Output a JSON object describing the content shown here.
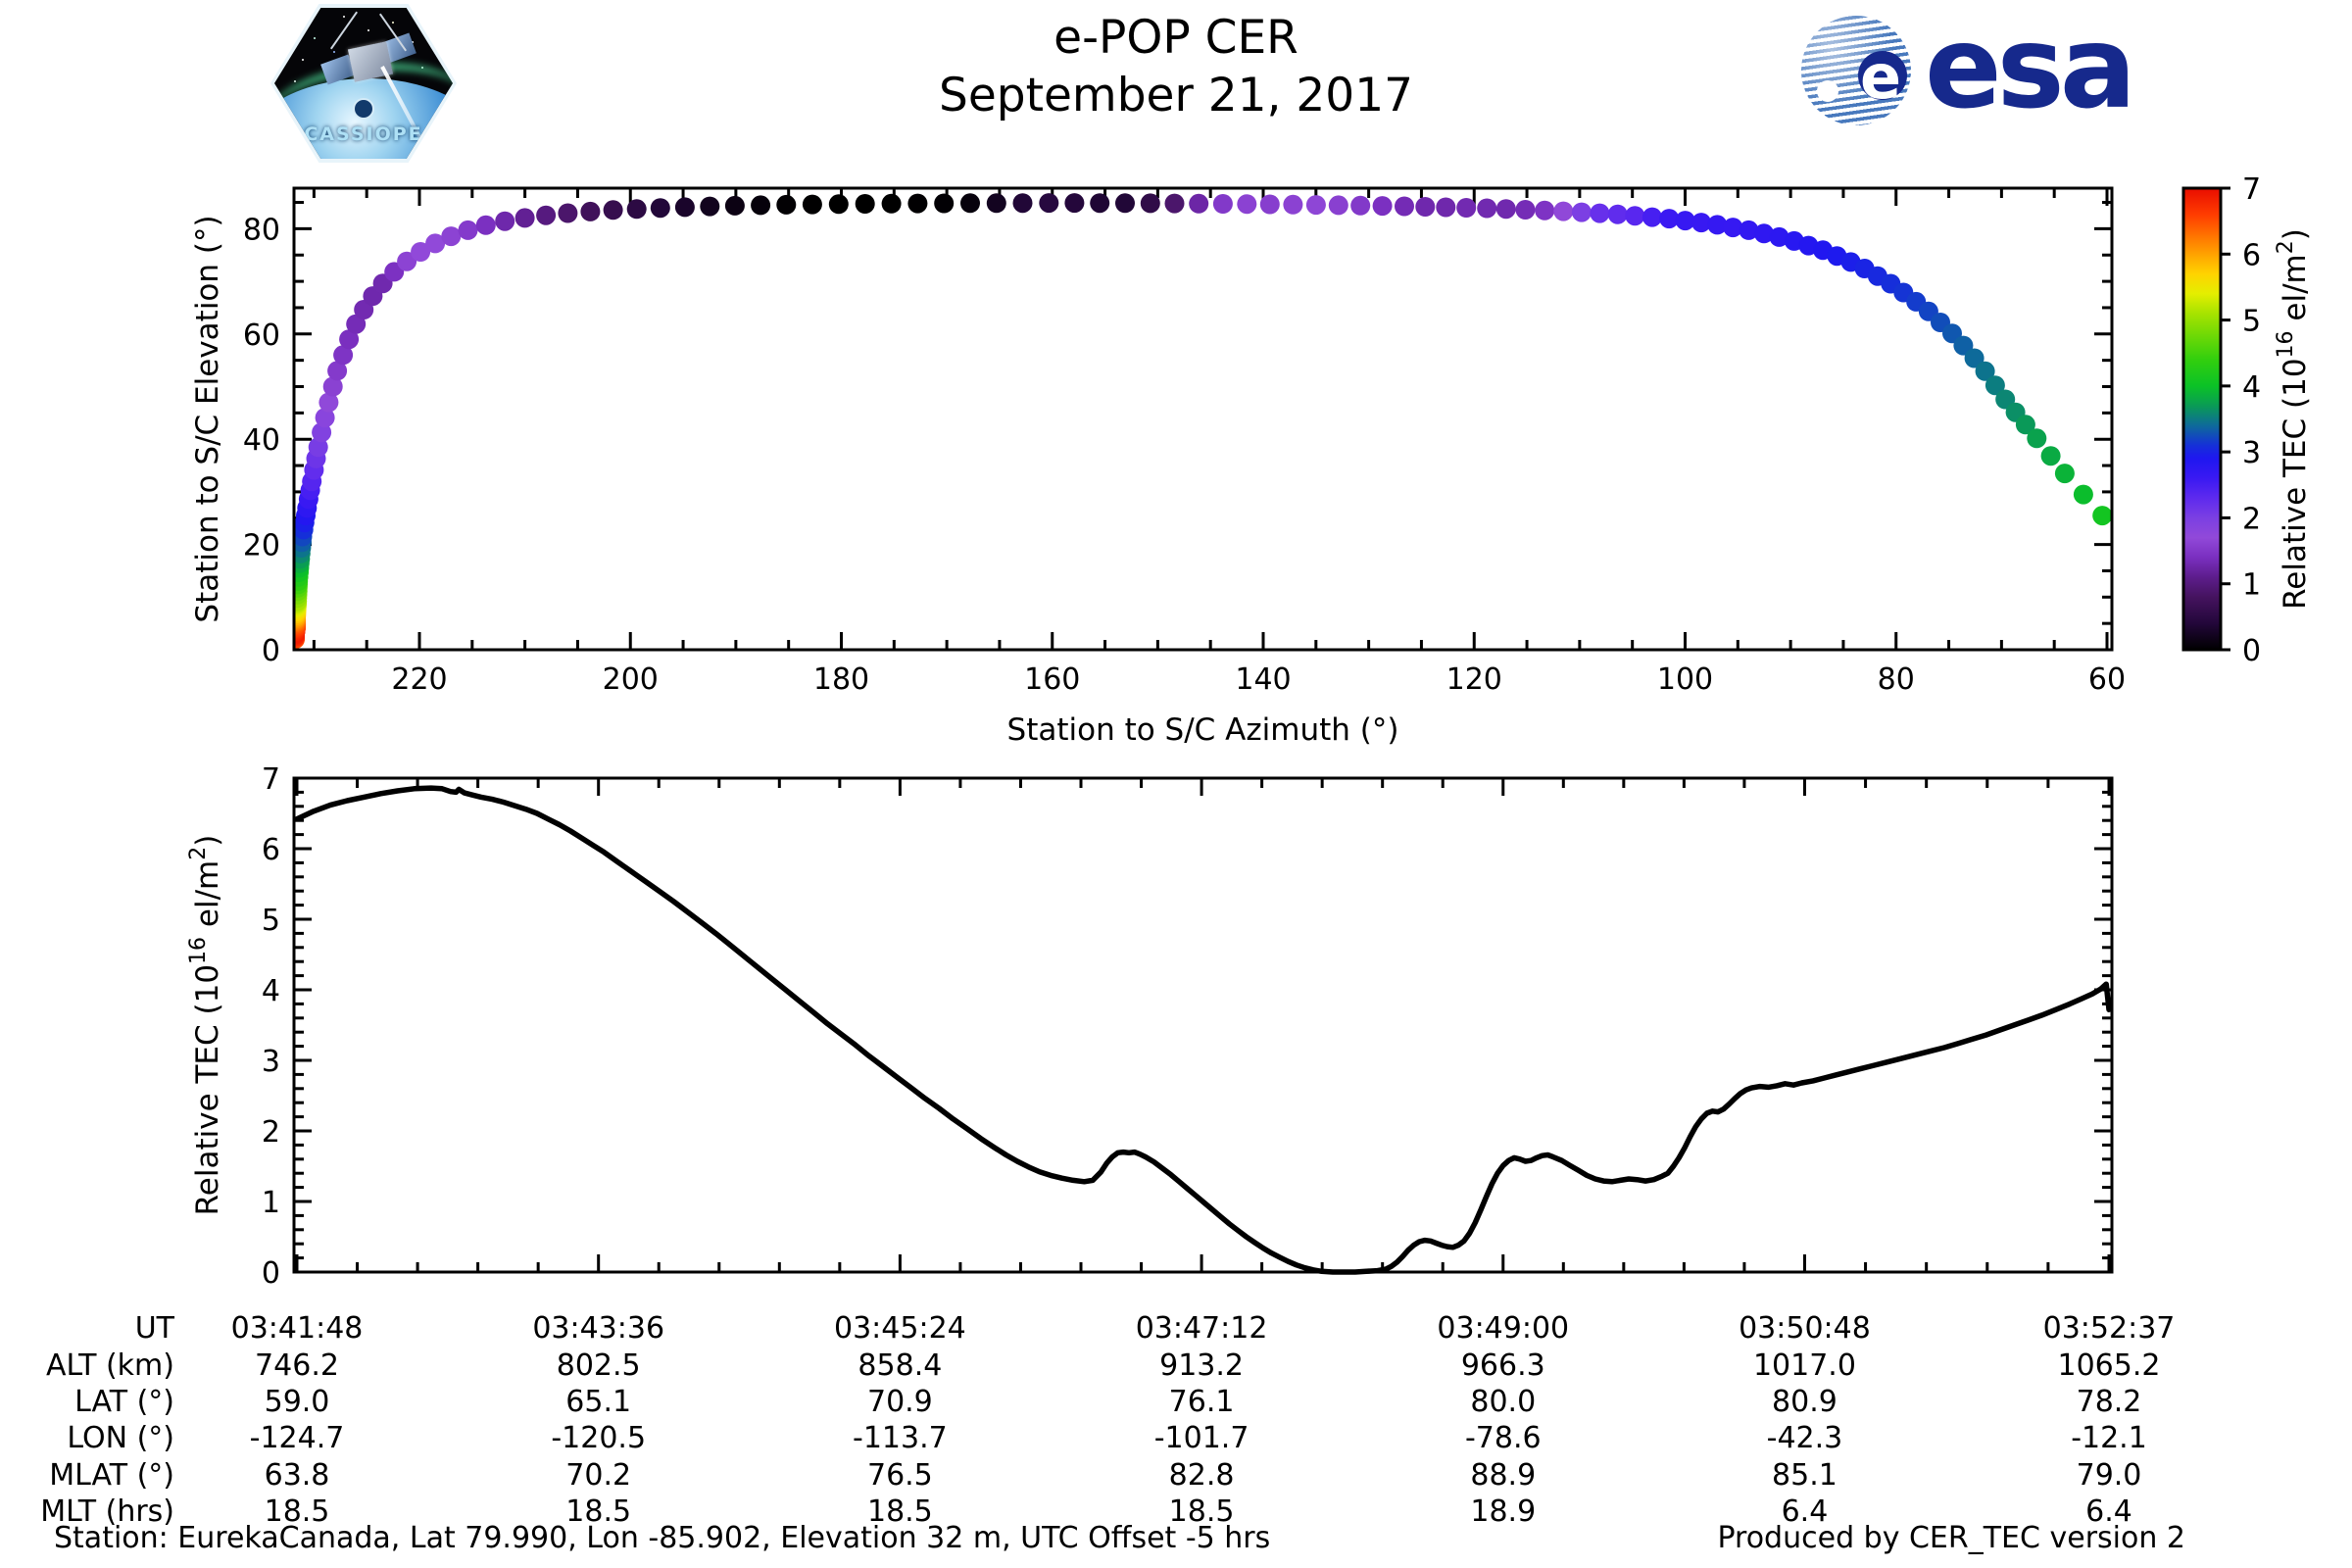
{
  "header": {
    "title": "e-POP CER",
    "date": "September 21, 2017",
    "mission_patch_label": "CASSIOPE",
    "esa_label": "esa"
  },
  "footer": {
    "station_info": "Station: EurekaCanada, Lat 79.990, Lon -85.902, Elevation 32 m, UTC Offset -5 hrs",
    "produced_by": "Produced by CER_TEC version 2"
  },
  "colors": {
    "esa_blue": "#16298c",
    "axis_black": "#000000",
    "background": "#ffffff"
  },
  "table": {
    "row_labels": [
      "UT",
      "ALT (km)",
      "LAT (°)",
      "LON (°)",
      "MLAT (°)",
      "MLT (hrs)"
    ],
    "columns": [
      {
        "ut": "03:41:48",
        "alt": "746.2",
        "lat": "59.0",
        "lon": "-124.7",
        "mlat": "63.8",
        "mlt": "18.5"
      },
      {
        "ut": "03:43:36",
        "alt": "802.5",
        "lat": "65.1",
        "lon": "-120.5",
        "mlat": "70.2",
        "mlt": "18.5"
      },
      {
        "ut": "03:45:24",
        "alt": "858.4",
        "lat": "70.9",
        "lon": "-113.7",
        "mlat": "76.5",
        "mlt": "18.5"
      },
      {
        "ut": "03:47:12",
        "alt": "913.2",
        "lat": "76.1",
        "lon": "-101.7",
        "mlat": "82.8",
        "mlt": "18.5"
      },
      {
        "ut": "03:49:00",
        "alt": "966.3",
        "lat": "80.0",
        "lon": "-78.6",
        "mlat": "88.9",
        "mlt": "18.9"
      },
      {
        "ut": "03:50:48",
        "alt": "1017.0",
        "lat": "80.9",
        "lon": "-42.3",
        "mlat": "85.1",
        "mlt": "6.4"
      },
      {
        "ut": "03:52:37",
        "alt": "1065.2",
        "lat": "78.2",
        "lon": "-12.1",
        "mlat": "79.0",
        "mlt": "6.4"
      }
    ]
  },
  "chart_data": [
    {
      "type": "scatter",
      "xlabel": "Station to S/C Azimuth (°)",
      "ylabel": "Station to S/C Elevation (°)",
      "x_reversed": true,
      "xlim": [
        231.9,
        59.5
      ],
      "ylim": [
        0,
        87.7
      ],
      "xticks": [
        220,
        200,
        180,
        160,
        140,
        120,
        100,
        80,
        60
      ],
      "yticks": [
        0,
        20,
        40,
        60,
        80
      ],
      "x_minor_step": 5,
      "y_minor_step": 5,
      "marker_radius": 10,
      "sample_dt": 4,
      "track_t_az_el": [
        [
          0,
          231.8,
          2.0
        ],
        [
          40,
          231.8,
          2.9
        ],
        [
          80,
          231.7,
          4.4
        ],
        [
          110,
          231.7,
          6.3
        ],
        [
          140,
          231.6,
          9.2
        ],
        [
          165,
          231.5,
          13.2
        ],
        [
          185,
          231.3,
          17.5
        ],
        [
          200,
          231.1,
          21.5
        ],
        [
          215,
          230.7,
          26.5
        ],
        [
          228,
          230.2,
          32.0
        ],
        [
          240,
          229.6,
          38.5
        ],
        [
          250,
          228.8,
          45.5
        ],
        [
          260,
          227.8,
          53.0
        ],
        [
          270,
          226.4,
          60.5
        ],
        [
          278,
          224.9,
          66.0
        ],
        [
          286,
          223.0,
          70.8
        ],
        [
          294,
          220.6,
          74.8
        ],
        [
          302,
          217.8,
          78.0
        ],
        [
          310,
          214.6,
          80.3
        ],
        [
          318,
          211.0,
          81.8
        ],
        [
          326,
          207.0,
          82.8
        ],
        [
          335,
          202.2,
          83.5
        ],
        [
          345,
          196.6,
          84.0
        ],
        [
          355,
          190.7,
          84.35
        ],
        [
          366,
          184.0,
          84.6
        ],
        [
          378,
          176.5,
          84.75
        ],
        [
          391,
          168.4,
          84.85
        ],
        [
          405,
          159.7,
          84.9
        ],
        [
          420,
          150.7,
          84.85
        ],
        [
          435,
          142.1,
          84.7
        ],
        [
          450,
          133.9,
          84.5
        ],
        [
          465,
          126.1,
          84.25
        ],
        [
          480,
          118.8,
          83.9
        ],
        [
          494,
          112.4,
          83.4
        ],
        [
          507,
          106.8,
          82.8
        ],
        [
          519,
          101.9,
          82.0
        ],
        [
          530,
          97.7,
          81.0
        ],
        [
          541,
          93.6,
          79.6
        ],
        [
          551,
          90.0,
          77.9
        ],
        [
          561,
          86.6,
          75.7
        ],
        [
          571,
          83.3,
          72.8
        ],
        [
          581,
          80.2,
          69.2
        ],
        [
          591,
          77.2,
          64.8
        ],
        [
          601,
          74.4,
          59.6
        ],
        [
          611,
          71.8,
          53.6
        ],
        [
          621,
          69.4,
          46.9
        ],
        [
          631,
          67.0,
          41.0
        ],
        [
          640,
          64.0,
          33.5
        ],
        [
          645,
          61.8,
          28.5
        ],
        [
          649,
          60.0,
          24.5
        ]
      ],
      "colorbar": {
        "lim": [
          0,
          7
        ],
        "ticks": [
          0,
          1,
          2,
          3,
          4,
          5,
          6,
          7
        ],
        "label_parts": [
          {
            "t": "Relative TEC (10"
          },
          {
            "t": "16",
            "sup": true
          },
          {
            "t": " el/m"
          },
          {
            "t": "2",
            "sup": true
          },
          {
            "t": ")"
          }
        ],
        "stops": [
          [
            0.0,
            "#000000"
          ],
          [
            0.4,
            "#23073a"
          ],
          [
            0.8,
            "#45135f"
          ],
          [
            1.1,
            "#5d1d8c"
          ],
          [
            1.4,
            "#7a2fc0"
          ],
          [
            1.7,
            "#9149d9"
          ],
          [
            2.0,
            "#7b3fe3"
          ],
          [
            2.3,
            "#5e2aee"
          ],
          [
            2.6,
            "#3a19f2"
          ],
          [
            2.9,
            "#1f17f0"
          ],
          [
            3.1,
            "#1530d8"
          ],
          [
            3.4,
            "#0e6a9a"
          ],
          [
            3.7,
            "#0a9b55"
          ],
          [
            4.0,
            "#0bc226"
          ],
          [
            4.4,
            "#32cf0e"
          ],
          [
            4.8,
            "#74da05"
          ],
          [
            5.1,
            "#a7e300"
          ],
          [
            5.4,
            "#e4ee00"
          ],
          [
            5.7,
            "#ffd300"
          ],
          [
            6.0,
            "#ffa200"
          ],
          [
            6.3,
            "#ff7000"
          ],
          [
            6.6,
            "#ff3c00"
          ],
          [
            7.0,
            "#e90d00"
          ]
        ]
      }
    },
    {
      "type": "line",
      "ylabel_parts": [
        {
          "t": "Relative TEC (10"
        },
        {
          "t": "16",
          "sup": true
        },
        {
          "t": " el/m"
        },
        {
          "t": "2",
          "sup": true
        },
        {
          "t": ")"
        }
      ],
      "xlim_seconds": [
        0,
        649
      ],
      "ylim": [
        0,
        7
      ],
      "yticks": [
        0,
        1,
        2,
        3,
        4,
        5,
        6,
        7
      ],
      "y_minor_step": 0.2,
      "x_tick_seconds": [
        0,
        108,
        216,
        324,
        432,
        540,
        649
      ],
      "x_tick_labels": [
        "03:41:48",
        "03:43:36",
        "03:45:24",
        "03:47:12",
        "03:49:00",
        "03:50:48",
        "03:52:37"
      ],
      "x_minor_per_interval": 4,
      "line_width": 5.5,
      "series_t_tec": [
        [
          0,
          6.42
        ],
        [
          6,
          6.53
        ],
        [
          12,
          6.62
        ],
        [
          18,
          6.68
        ],
        [
          24,
          6.73
        ],
        [
          30,
          6.78
        ],
        [
          36,
          6.82
        ],
        [
          42,
          6.85
        ],
        [
          48,
          6.86
        ],
        [
          52,
          6.85
        ],
        [
          55,
          6.81
        ],
        [
          57,
          6.8
        ],
        [
          58,
          6.84
        ],
        [
          60,
          6.79
        ],
        [
          63,
          6.76
        ],
        [
          66,
          6.73
        ],
        [
          70,
          6.7
        ],
        [
          74,
          6.66
        ],
        [
          78,
          6.61
        ],
        [
          82,
          6.56
        ],
        [
          86,
          6.5
        ],
        [
          90,
          6.42
        ],
        [
          94,
          6.34
        ],
        [
          98,
          6.25
        ],
        [
          102,
          6.15
        ],
        [
          106,
          6.05
        ],
        [
          110,
          5.95
        ],
        [
          115,
          5.81
        ],
        [
          120,
          5.67
        ],
        [
          125,
          5.53
        ],
        [
          130,
          5.39
        ],
        [
          135,
          5.25
        ],
        [
          140,
          5.1
        ],
        [
          145,
          4.95
        ],
        [
          150,
          4.8
        ],
        [
          155,
          4.64
        ],
        [
          160,
          4.48
        ],
        [
          165,
          4.32
        ],
        [
          170,
          4.16
        ],
        [
          175,
          4.0
        ],
        [
          180,
          3.84
        ],
        [
          185,
          3.68
        ],
        [
          190,
          3.52
        ],
        [
          195,
          3.37
        ],
        [
          200,
          3.22
        ],
        [
          205,
          3.06
        ],
        [
          210,
          2.91
        ],
        [
          215,
          2.76
        ],
        [
          220,
          2.61
        ],
        [
          225,
          2.46
        ],
        [
          230,
          2.32
        ],
        [
          235,
          2.17
        ],
        [
          240,
          2.03
        ],
        [
          245,
          1.89
        ],
        [
          250,
          1.76
        ],
        [
          254,
          1.66
        ],
        [
          258,
          1.57
        ],
        [
          262,
          1.49
        ],
        [
          266,
          1.42
        ],
        [
          270,
          1.37
        ],
        [
          274,
          1.33
        ],
        [
          278,
          1.3
        ],
        [
          282,
          1.28
        ],
        [
          285,
          1.3
        ],
        [
          288,
          1.42
        ],
        [
          290,
          1.54
        ],
        [
          292,
          1.63
        ],
        [
          294,
          1.69
        ],
        [
          296,
          1.7
        ],
        [
          298,
          1.69
        ],
        [
          300,
          1.7
        ],
        [
          302,
          1.67
        ],
        [
          304,
          1.63
        ],
        [
          307,
          1.56
        ],
        [
          310,
          1.47
        ],
        [
          313,
          1.38
        ],
        [
          316,
          1.28
        ],
        [
          319,
          1.18
        ],
        [
          322,
          1.08
        ],
        [
          325,
          0.98
        ],
        [
          328,
          0.88
        ],
        [
          331,
          0.78
        ],
        [
          334,
          0.68
        ],
        [
          337,
          0.59
        ],
        [
          340,
          0.5
        ],
        [
          343,
          0.42
        ],
        [
          346,
          0.34
        ],
        [
          349,
          0.27
        ],
        [
          352,
          0.21
        ],
        [
          355,
          0.15
        ],
        [
          358,
          0.1
        ],
        [
          361,
          0.06
        ],
        [
          364,
          0.03
        ],
        [
          367,
          0.01
        ],
        [
          371,
          0.0
        ],
        [
          375,
          0.0
        ],
        [
          379,
          0.0
        ],
        [
          383,
          0.01
        ],
        [
          387,
          0.02
        ],
        [
          390,
          0.04
        ],
        [
          392,
          0.08
        ],
        [
          394,
          0.14
        ],
        [
          396,
          0.22
        ],
        [
          398,
          0.31
        ],
        [
          400,
          0.38
        ],
        [
          402,
          0.43
        ],
        [
          404,
          0.45
        ],
        [
          406,
          0.44
        ],
        [
          408,
          0.41
        ],
        [
          410,
          0.38
        ],
        [
          412,
          0.36
        ],
        [
          414,
          0.35
        ],
        [
          416,
          0.38
        ],
        [
          418,
          0.44
        ],
        [
          420,
          0.55
        ],
        [
          422,
          0.7
        ],
        [
          424,
          0.88
        ],
        [
          426,
          1.07
        ],
        [
          428,
          1.25
        ],
        [
          430,
          1.4
        ],
        [
          432,
          1.51
        ],
        [
          434,
          1.58
        ],
        [
          436,
          1.62
        ],
        [
          438,
          1.6
        ],
        [
          440,
          1.57
        ],
        [
          442,
          1.58
        ],
        [
          444,
          1.62
        ],
        [
          446,
          1.65
        ],
        [
          448,
          1.66
        ],
        [
          450,
          1.63
        ],
        [
          453,
          1.58
        ],
        [
          456,
          1.51
        ],
        [
          459,
          1.44
        ],
        [
          462,
          1.37
        ],
        [
          465,
          1.32
        ],
        [
          468,
          1.29
        ],
        [
          471,
          1.28
        ],
        [
          474,
          1.3
        ],
        [
          477,
          1.32
        ],
        [
          480,
          1.31
        ],
        [
          483,
          1.29
        ],
        [
          486,
          1.31
        ],
        [
          489,
          1.36
        ],
        [
          491,
          1.4
        ],
        [
          493,
          1.5
        ],
        [
          495,
          1.62
        ],
        [
          497,
          1.76
        ],
        [
          499,
          1.92
        ],
        [
          501,
          2.06
        ],
        [
          503,
          2.17
        ],
        [
          505,
          2.25
        ],
        [
          507,
          2.28
        ],
        [
          509,
          2.27
        ],
        [
          511,
          2.31
        ],
        [
          513,
          2.38
        ],
        [
          515,
          2.46
        ],
        [
          517,
          2.53
        ],
        [
          519,
          2.58
        ],
        [
          521,
          2.61
        ],
        [
          524,
          2.63
        ],
        [
          527,
          2.62
        ],
        [
          530,
          2.64
        ],
        [
          533,
          2.67
        ],
        [
          536,
          2.65
        ],
        [
          539,
          2.68
        ],
        [
          543,
          2.71
        ],
        [
          547,
          2.75
        ],
        [
          551,
          2.79
        ],
        [
          555,
          2.83
        ],
        [
          560,
          2.88
        ],
        [
          565,
          2.93
        ],
        [
          570,
          2.98
        ],
        [
          575,
          3.03
        ],
        [
          580,
          3.08
        ],
        [
          585,
          3.13
        ],
        [
          590,
          3.18
        ],
        [
          595,
          3.24
        ],
        [
          600,
          3.3
        ],
        [
          605,
          3.36
        ],
        [
          610,
          3.43
        ],
        [
          615,
          3.5
        ],
        [
          620,
          3.57
        ],
        [
          625,
          3.64
        ],
        [
          630,
          3.72
        ],
        [
          635,
          3.8
        ],
        [
          639,
          3.87
        ],
        [
          643,
          3.94
        ],
        [
          646,
          4.01
        ],
        [
          648,
          4.08
        ],
        [
          649,
          3.72
        ]
      ]
    }
  ]
}
